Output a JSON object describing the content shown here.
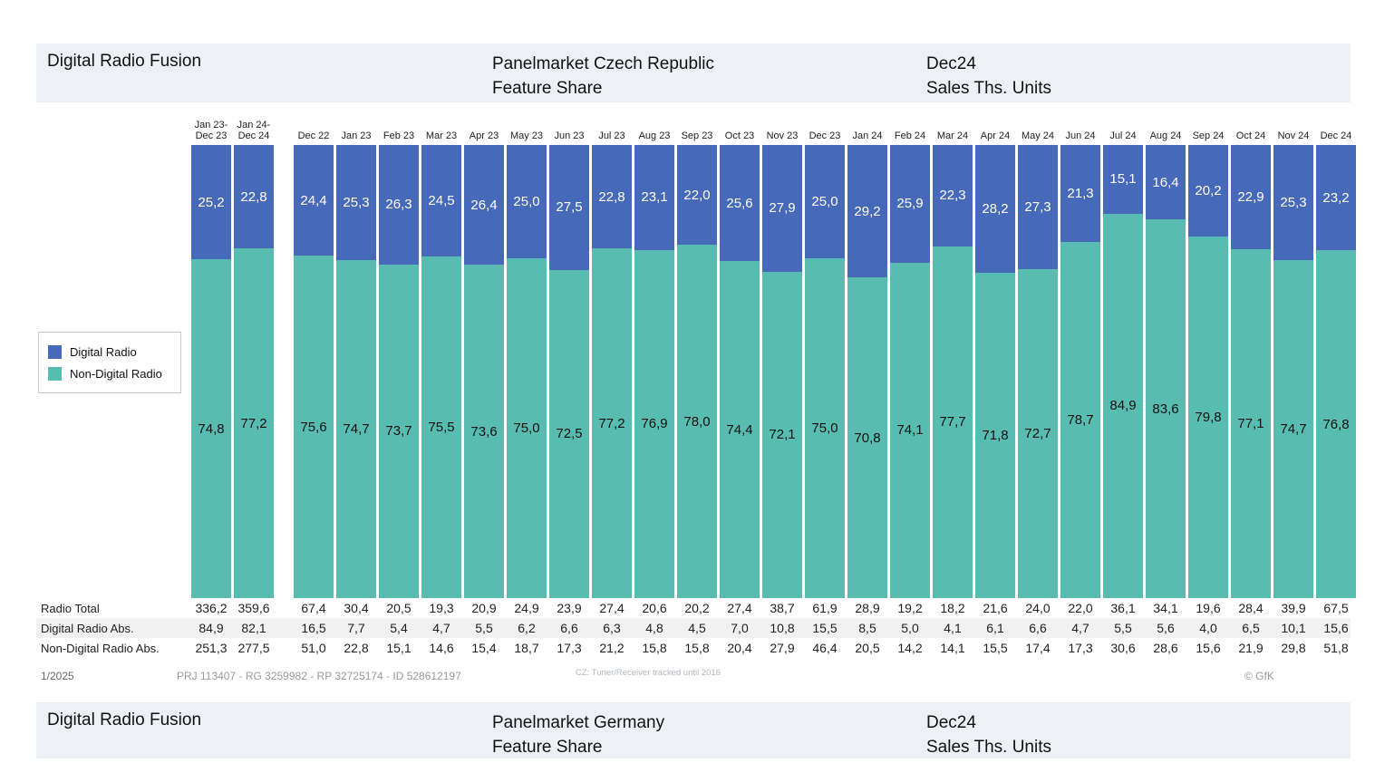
{
  "header_top": {
    "title": "Digital Radio Fusion",
    "market_line": "Panelmarket Czech Republic\nFeature Share",
    "period_line": "Dec24\nSales Ths. Units"
  },
  "header_bottom": {
    "title": "Digital Radio Fusion",
    "market_line": "Panelmarket Germany\nFeature Share",
    "period_line": "Dec24\nSales Ths. Units"
  },
  "legend": {
    "items": [
      {
        "label": "Digital Radio",
        "color": "#4769ba"
      },
      {
        "label": "Non-Digital Radio",
        "color": "#58bdb0"
      }
    ]
  },
  "chart_data": {
    "type": "bar",
    "stacked": true,
    "ylim": [
      0,
      100
    ],
    "value_unit": "percent share",
    "categories": [
      "Jan 23-\nDec 23",
      "Jan 24-\nDec 24",
      "Dec 22",
      "Jan 23",
      "Feb 23",
      "Mar 23",
      "Apr 23",
      "May 23",
      "Jun 23",
      "Jul 23",
      "Aug 23",
      "Sep 23",
      "Oct 23",
      "Nov 23",
      "Dec 23",
      "Jan 24",
      "Feb 24",
      "Mar 24",
      "Apr 24",
      "May 24",
      "Jun 24",
      "Jul 24",
      "Aug 24",
      "Sep 24",
      "Oct 24",
      "Nov 24",
      "Dec 24"
    ],
    "series": [
      {
        "name": "Digital Radio",
        "color": "#4769ba",
        "values": [
          "25,2",
          "22,8",
          "24,4",
          "25,3",
          "26,3",
          "24,5",
          "26,4",
          "25,0",
          "27,5",
          "22,8",
          "23,1",
          "22,0",
          "25,6",
          "27,9",
          "25,0",
          "29,2",
          "25,9",
          "22,3",
          "28,2",
          "27,3",
          "21,3",
          "15,1",
          "16,4",
          "20,2",
          "22,9",
          "25,3",
          "23,2"
        ]
      },
      {
        "name": "Non-Digital Radio",
        "color": "#58bdb0",
        "values": [
          "74,8",
          "77,2",
          "75,6",
          "74,7",
          "73,7",
          "75,5",
          "73,6",
          "75,0",
          "72,5",
          "77,2",
          "76,9",
          "78,0",
          "74,4",
          "72,1",
          "75,0",
          "70,8",
          "74,1",
          "77,7",
          "71,8",
          "72,7",
          "78,7",
          "84,9",
          "83,6",
          "79,8",
          "77,1",
          "74,7",
          "76,8"
        ]
      }
    ]
  },
  "table": {
    "rows": [
      {
        "label": "Radio Total",
        "values": [
          "336,2",
          "359,6",
          "67,4",
          "30,4",
          "20,5",
          "19,3",
          "20,9",
          "24,9",
          "23,9",
          "27,4",
          "20,6",
          "20,2",
          "27,4",
          "38,7",
          "61,9",
          "28,9",
          "19,2",
          "18,2",
          "21,6",
          "24,0",
          "22,0",
          "36,1",
          "34,1",
          "19,6",
          "28,4",
          "39,9",
          "67,5"
        ]
      },
      {
        "label": "Digital Radio Abs.",
        "values": [
          "84,9",
          "82,1",
          "16,5",
          "7,7",
          "5,4",
          "4,7",
          "5,5",
          "6,2",
          "6,6",
          "6,3",
          "4,8",
          "4,5",
          "7,0",
          "10,8",
          "15,5",
          "8,5",
          "5,0",
          "4,1",
          "6,1",
          "6,6",
          "4,7",
          "5,5",
          "5,6",
          "4,0",
          "6,5",
          "10,1",
          "15,6"
        ]
      },
      {
        "label": "Non-Digital Radio Abs.",
        "values": [
          "251,3",
          "277,5",
          "51,0",
          "22,8",
          "15,1",
          "14,6",
          "15,4",
          "18,7",
          "17,3",
          "21,2",
          "15,8",
          "15,8",
          "20,4",
          "27,9",
          "46,4",
          "20,5",
          "14,2",
          "14,1",
          "15,5",
          "17,4",
          "17,3",
          "30,6",
          "28,6",
          "15,6",
          "21,9",
          "29,8",
          "51,8"
        ]
      }
    ]
  },
  "footer": {
    "date": "1/2025",
    "project": "PRJ 113407 - RG 3259982 - RP 32725174 - ID 528612197",
    "note": "CZ: Tuner/Receiver tracked until 2016",
    "copyright": "© GfK"
  }
}
